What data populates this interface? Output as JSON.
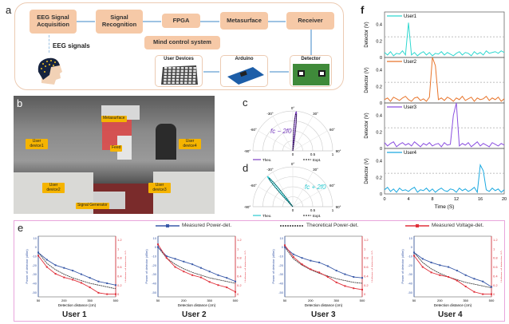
{
  "panel_labels": {
    "a": "a",
    "b": "b",
    "c": "c",
    "d": "d",
    "e": "e",
    "f": "f"
  },
  "panel_a": {
    "blocks": [
      "EEG Signal Acquisition",
      "Signal Recognition",
      "FPGA",
      "Metasurface",
      "Receiver"
    ],
    "system_label": "Mind control  system",
    "eeg_label": "EEG signals",
    "devices": [
      "User Devices",
      "Arduino",
      "Detector"
    ],
    "colors": {
      "block": "#f6c9a7",
      "arrow": "#9ec3e3",
      "frame": "#eccbb3"
    }
  },
  "panel_b": {
    "tags": {
      "metasurface": "Metasurface",
      "feed": "Feed",
      "user1": "User device1",
      "user2": "User device2",
      "user3": "User device3",
      "user4": "User device4",
      "generator": "Signal Generator"
    }
  },
  "panel_c": {
    "formula": "fc − 2f0",
    "legend_theo": "Theo.",
    "legend_expt": "Expt.",
    "beam_angle_deg": 5,
    "color": "#7a3fc0",
    "angle_ticks": [
      "-90°",
      "-60°",
      "-30°",
      "0°",
      "30°",
      "60°",
      "90°"
    ],
    "radial_ticks": [
      "0",
      "0.5",
      "1"
    ]
  },
  "panel_d": {
    "formula": "fc + 2f0",
    "legend_theo": "Theo.",
    "legend_expt": "Expt.",
    "beam_angle_deg": -40,
    "color": "#29c9d0",
    "angle_ticks": [
      "-90°",
      "-60°",
      "-30°",
      "0°",
      "30°",
      "60°",
      "90°"
    ],
    "radial_ticks": [
      "0",
      "0.5",
      "1"
    ]
  },
  "chart_data": [
    {
      "type": "line",
      "panel": "f",
      "xlabel": "Time (S)",
      "ylabel": "Detector (V)",
      "xlim": [
        0,
        20
      ],
      "ylim": [
        0,
        0.55
      ],
      "xticks": [
        "0",
        "4",
        "8",
        "12",
        "16",
        "20"
      ],
      "yticks": [
        "0",
        "0.2",
        "0.4"
      ],
      "threshold": 0.25,
      "x_step": 0.5,
      "series": [
        {
          "name": "User1",
          "color": "#2fd8d0",
          "values": [
            0.06,
            0.03,
            0.07,
            0.02,
            0.05,
            0.04,
            0.08,
            0.03,
            0.42,
            0.03,
            0.06,
            0.02,
            0.05,
            0.07,
            0.03,
            0.06,
            0.02,
            0.05,
            0.04,
            0.07,
            0.03,
            0.06,
            0.04,
            0.02,
            0.05,
            0.07,
            0.03,
            0.06,
            0.05,
            0.02,
            0.07,
            0.04,
            0.06,
            0.03,
            0.08,
            0.05,
            0.06,
            0.07,
            0.05,
            0.08,
            0.06
          ]
        },
        {
          "name": "User2",
          "color": "#e8742a",
          "values": [
            0.04,
            0.06,
            0.02,
            0.07,
            0.05,
            0.03,
            0.06,
            0.08,
            0.04,
            0.02,
            0.06,
            0.07,
            0.03,
            0.05,
            0.02,
            0.07,
            0.55,
            0.45,
            0.04,
            0.06,
            0.03,
            0.07,
            0.05,
            0.02,
            0.06,
            0.04,
            0.08,
            0.03,
            0.05,
            0.07,
            0.02,
            0.06,
            0.04,
            0.05,
            0.08,
            0.03,
            0.06,
            0.04,
            0.07,
            0.02,
            0.05
          ]
        },
        {
          "name": "User3",
          "color": "#8b4fe0",
          "values": [
            0.07,
            0.03,
            0.06,
            0.08,
            0.02,
            0.05,
            0.07,
            0.04,
            0.06,
            0.03,
            0.08,
            0.05,
            0.02,
            0.06,
            0.04,
            0.07,
            0.03,
            0.05,
            0.06,
            0.02,
            0.07,
            0.04,
            0.05,
            0.4,
            0.55,
            0.03,
            0.06,
            0.04,
            0.07,
            0.02,
            0.05,
            0.08,
            0.03,
            0.06,
            0.04,
            0.02,
            0.07,
            0.05,
            0.03,
            0.06,
            0.04
          ]
        },
        {
          "name": "User4",
          "color": "#1aa8e0",
          "values": [
            0.05,
            0.08,
            0.03,
            0.06,
            0.02,
            0.07,
            0.04,
            0.05,
            0.03,
            0.06,
            0.08,
            0.02,
            0.05,
            0.04,
            0.07,
            0.03,
            0.06,
            0.02,
            0.05,
            0.07,
            0.04,
            0.03,
            0.06,
            0.05,
            0.02,
            0.07,
            0.04,
            0.06,
            0.03,
            0.05,
            0.08,
            0.02,
            0.35,
            0.28,
            0.05,
            0.03,
            0.07,
            0.04,
            0.06,
            0.02,
            0.05
          ]
        }
      ]
    },
    {
      "type": "line",
      "panel": "e",
      "xlabel": "Detection distance (cm)",
      "ylabel_left": "Power of detector (dBm)",
      "ylabel_right": "Voltage of detector (V)",
      "xlim": [
        50,
        500
      ],
      "ylim_left": [
        -55,
        12
      ],
      "ylim_right": [
        -0.06,
        1.28
      ],
      "xticks": [
        "50",
        "200",
        "350",
        "500"
      ],
      "yticks_left": [
        "10",
        "0",
        "-10",
        "-20",
        "-30",
        "-40",
        "-50"
      ],
      "yticks_right": [
        "0",
        "0.2",
        "0.4",
        "0.6",
        "0.8",
        "1",
        "1.2"
      ],
      "legend": [
        {
          "name": "Measured Power-det.",
          "color": "#3a5aa8"
        },
        {
          "name": "Theoretical Power-det.",
          "color": "#333333"
        },
        {
          "name": "Measured Voltage-det.",
          "color": "#e0303a"
        }
      ],
      "x": [
        50,
        100,
        150,
        200,
        250,
        300,
        350,
        400,
        450,
        500
      ],
      "users": [
        {
          "name": "User 1",
          "measured_power": [
            -6,
            -14,
            -20,
            -23,
            -26,
            -30,
            -34,
            -38,
            -40,
            -42
          ],
          "theoretical_power": [
            -6,
            -18,
            -25,
            -30,
            -34,
            -37,
            -40,
            -42,
            -44,
            -46
          ],
          "measured_voltage": [
            0.85,
            0.6,
            0.45,
            0.37,
            0.32,
            0.25,
            0.15,
            0.03,
            0.0,
            0.0
          ]
        },
        {
          "name": "User 2",
          "measured_power": [
            0,
            -10,
            -13,
            -16,
            -19,
            -23,
            -27,
            -31,
            -34,
            -38
          ],
          "theoretical_power": [
            0,
            -12,
            -19,
            -24,
            -28,
            -31,
            -34,
            -36,
            -38,
            -40
          ],
          "measured_voltage": [
            1.1,
            0.8,
            0.6,
            0.5,
            0.42,
            0.37,
            0.27,
            0.2,
            0.15,
            0.05
          ]
        },
        {
          "name": "User 3",
          "measured_power": [
            0,
            -8,
            -12,
            -15,
            -17,
            -21,
            -26,
            -30,
            -33,
            -34
          ],
          "theoretical_power": [
            0,
            -13,
            -20,
            -25,
            -29,
            -32,
            -35,
            -37,
            -39,
            -40
          ],
          "measured_voltage": [
            1.08,
            0.82,
            0.66,
            0.55,
            0.48,
            0.38,
            0.26,
            0.18,
            0.13,
            0.1
          ]
        },
        {
          "name": "User 4",
          "measured_power": [
            -6,
            -13,
            -17,
            -20,
            -22,
            -26,
            -31,
            -35,
            -38,
            -44
          ],
          "theoretical_power": [
            -6,
            -17,
            -24,
            -29,
            -33,
            -36,
            -39,
            -41,
            -43,
            -45
          ],
          "measured_voltage": [
            0.85,
            0.6,
            0.48,
            0.42,
            0.38,
            0.3,
            0.17,
            0.05,
            0.0,
            0.0
          ]
        }
      ]
    }
  ]
}
